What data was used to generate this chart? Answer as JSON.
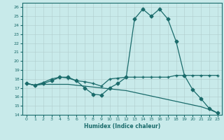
{
  "title": "",
  "xlabel": "Humidex (Indice chaleur)",
  "background_color": "#c8eaea",
  "grid_color": "#b0cccc",
  "line_color": "#1a6b6b",
  "xlim": [
    -0.5,
    23.5
  ],
  "ylim": [
    14,
    26.5
  ],
  "yticks": [
    14,
    15,
    16,
    17,
    18,
    19,
    20,
    21,
    22,
    23,
    24,
    25,
    26
  ],
  "xticks": [
    0,
    1,
    2,
    3,
    4,
    5,
    6,
    7,
    8,
    9,
    10,
    11,
    12,
    13,
    14,
    15,
    16,
    17,
    18,
    19,
    20,
    21,
    22,
    23
  ],
  "series": [
    {
      "x": [
        0,
        1,
        2,
        3,
        4,
        5,
        6,
        7,
        8,
        9,
        10,
        11,
        12,
        13,
        14,
        15,
        16,
        17,
        18,
        19,
        20,
        21,
        22,
        23
      ],
      "y": [
        17.5,
        17.3,
        17.5,
        17.8,
        18.2,
        18.2,
        17.8,
        17.0,
        16.3,
        16.2,
        17.0,
        17.5,
        18.2,
        24.7,
        25.8,
        25.0,
        25.8,
        24.7,
        22.2,
        18.4,
        16.8,
        15.8,
        14.7,
        14.2
      ],
      "marker": "D",
      "markersize": 2.5,
      "linewidth": 0.9
    },
    {
      "x": [
        0,
        1,
        2,
        3,
        4,
        5,
        6,
        7,
        8,
        9,
        10,
        11,
        12,
        13,
        14,
        15,
        16,
        17,
        18,
        19,
        20,
        21,
        22,
        23
      ],
      "y": [
        17.5,
        17.3,
        17.6,
        18.0,
        18.2,
        18.1,
        17.8,
        17.7,
        17.5,
        17.2,
        18.0,
        18.1,
        18.2,
        18.2,
        18.2,
        18.2,
        18.2,
        18.2,
        18.4,
        18.4,
        18.4,
        18.4,
        18.4,
        18.4
      ],
      "marker": "+",
      "markersize": 3.5,
      "linewidth": 0.9
    },
    {
      "x": [
        0,
        1,
        2,
        3,
        4,
        5,
        6,
        7,
        8,
        9,
        10,
        11,
        12,
        13,
        14,
        15,
        16,
        17,
        18,
        19,
        20,
        21,
        22,
        23
      ],
      "y": [
        17.5,
        17.3,
        17.4,
        17.4,
        17.4,
        17.4,
        17.3,
        17.2,
        17.1,
        17.0,
        16.9,
        16.8,
        16.7,
        16.5,
        16.3,
        16.1,
        15.9,
        15.7,
        15.5,
        15.3,
        15.1,
        14.9,
        14.6,
        14.2
      ],
      "marker": null,
      "markersize": 0,
      "linewidth": 0.9
    }
  ]
}
